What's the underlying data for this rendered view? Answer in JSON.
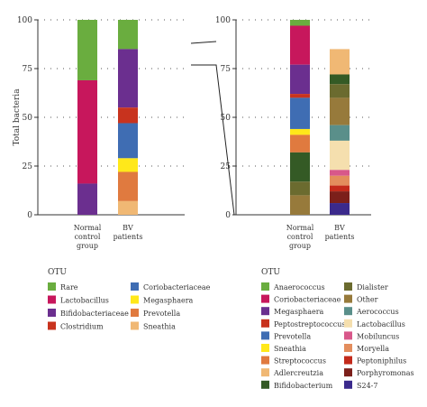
{
  "chart_data": [
    {
      "type": "bar",
      "stacked": true,
      "ylabel": "Total bacteria",
      "ylim": [
        0,
        100
      ],
      "yticks": [
        0,
        25,
        50,
        75,
        100
      ],
      "grid": "dotted horizontal",
      "categories": [
        "Normal control group",
        "BV patients"
      ],
      "legend_title": "OTU",
      "series": [
        {
          "name": "Rare",
          "color": "#6aad3f",
          "values": [
            31,
            15
          ]
        },
        {
          "name": "Lactobacillus",
          "color": "#c7175c",
          "values": [
            53,
            0
          ]
        },
        {
          "name": "Bifidobacteriaceae",
          "color": "#6b2f8f",
          "values": [
            16,
            30
          ]
        },
        {
          "name": "Clostridium",
          "color": "#c8331e",
          "values": [
            0,
            8
          ]
        },
        {
          "name": "Coriobacteriaceae",
          "color": "#3f6db3",
          "values": [
            0,
            18
          ]
        },
        {
          "name": "Megasphaera",
          "color": "#ffe81a",
          "values": [
            0,
            7
          ]
        },
        {
          "name": "Prevotella",
          "color": "#e07a3f",
          "values": [
            0,
            15
          ]
        },
        {
          "name": "Sneathia",
          "color": "#f0b874",
          "values": [
            0,
            7
          ]
        }
      ]
    },
    {
      "type": "bar",
      "stacked": true,
      "ylim": [
        0,
        100
      ],
      "yticks": [
        0,
        25,
        50,
        75,
        100
      ],
      "grid": "dotted horizontal",
      "categories": [
        "Normal control group",
        "BV patients"
      ],
      "legend_title": "OTU",
      "series": [
        {
          "name": "Anaerococcus",
          "color": "#6aad3f",
          "values": [
            3,
            0
          ]
        },
        {
          "name": "Coriobacteriaceae",
          "color": "#c7175c",
          "values": [
            20,
            0
          ]
        },
        {
          "name": "Megasphaera",
          "color": "#6b2f8f",
          "values": [
            15,
            0
          ]
        },
        {
          "name": "Peptostreptococcus",
          "color": "#c8331e",
          "values": [
            2,
            0
          ]
        },
        {
          "name": "Prevotella",
          "color": "#3f6db3",
          "values": [
            16,
            0
          ]
        },
        {
          "name": "Sneathia",
          "color": "#ffe81a",
          "values": [
            3,
            0
          ]
        },
        {
          "name": "Streptococcus",
          "color": "#e07a3f",
          "values": [
            9,
            0
          ]
        },
        {
          "name": "Adlercreutzia",
          "color": "#f0b874",
          "values": [
            0,
            13
          ]
        },
        {
          "name": "Bifidobacterium",
          "color": "#345a25",
          "values": [
            15,
            5
          ]
        },
        {
          "name": "Dialister",
          "color": "#6b6b2f",
          "values": [
            7,
            7
          ]
        },
        {
          "name": "Other",
          "color": "#977a3b",
          "values": [
            10,
            14
          ]
        },
        {
          "name": "Aerococcus",
          "color": "#5a8f8a",
          "values": [
            0,
            8
          ]
        },
        {
          "name": "Lactobacillus",
          "color": "#f5dfae",
          "values": [
            0,
            15
          ]
        },
        {
          "name": "Mobiluncus",
          "color": "#d8588a",
          "values": [
            0,
            3
          ]
        },
        {
          "name": "Moryella",
          "color": "#e38d5d",
          "values": [
            0,
            5
          ]
        },
        {
          "name": "Peptoniphilus",
          "color": "#c32a1b",
          "values": [
            0,
            3
          ]
        },
        {
          "name": "Porphyromonas",
          "color": "#7c1f1a",
          "values": [
            0,
            6
          ]
        },
        {
          "name": "S24-7",
          "color": "#3b2a8c",
          "values": [
            0,
            6
          ]
        }
      ]
    }
  ]
}
